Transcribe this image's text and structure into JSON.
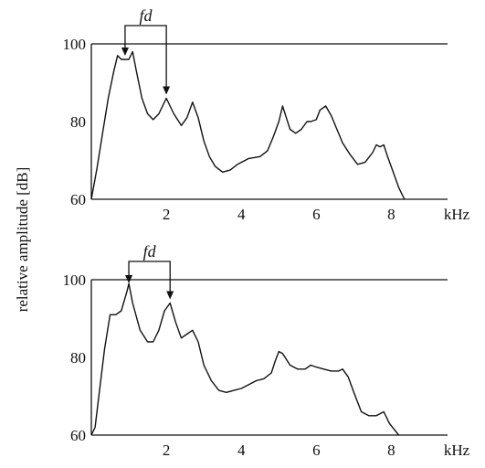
{
  "figure": {
    "ylabel": "relative amplitude [dB]"
  },
  "chart_data": [
    {
      "type": "line",
      "title": "",
      "xlabel": "",
      "ylabel": "relative amplitude [dB]",
      "x_unit": "kHz",
      "xlim": [
        0,
        9.5
      ],
      "ylim": [
        60,
        100
      ],
      "x_ticks": [
        "2",
        "4",
        "6",
        "8"
      ],
      "y_ticks": [
        "60",
        "80",
        "100"
      ],
      "grid": false,
      "annotation": {
        "label": "fd",
        "from_x": 0.9,
        "to_x": 2.0
      },
      "series": [
        {
          "x": [
            0.0,
            0.15,
            0.3,
            0.45,
            0.6,
            0.7,
            0.8,
            0.9,
            1.0,
            1.1,
            1.2,
            1.35,
            1.5,
            1.65,
            1.8,
            2.0,
            2.2,
            2.4,
            2.55,
            2.7,
            2.85,
            3.0,
            3.15,
            3.3,
            3.5,
            3.7,
            3.9,
            4.2,
            4.5,
            4.7,
            4.85,
            5.0,
            5.1,
            5.2,
            5.3,
            5.45,
            5.6,
            5.75,
            5.85,
            6.0,
            6.1,
            6.25,
            6.4,
            6.55,
            6.7,
            6.9,
            7.1,
            7.3,
            7.5,
            7.6,
            7.7,
            7.8,
            7.9,
            8.05,
            8.2,
            8.35
          ],
          "y": [
            60.0,
            68.0,
            77.0,
            86.0,
            93.0,
            97.0,
            96.0,
            96.0,
            96.0,
            98.0,
            93.0,
            86.0,
            82.0,
            80.5,
            82.0,
            86.0,
            82.0,
            79.0,
            81.0,
            85.0,
            81.0,
            75.0,
            71.0,
            68.5,
            67.0,
            67.5,
            69.0,
            70.5,
            71.0,
            72.5,
            76.0,
            80.0,
            84.0,
            81.0,
            78.0,
            77.0,
            78.0,
            80.0,
            80.0,
            80.5,
            83.0,
            84.0,
            81.5,
            78.0,
            74.5,
            71.5,
            69.0,
            69.5,
            72.0,
            74.0,
            73.5,
            74.0,
            71.0,
            67.0,
            63.0,
            60.0
          ]
        }
      ]
    },
    {
      "type": "line",
      "title": "",
      "xlabel": "",
      "ylabel": "relative amplitude [dB]",
      "x_unit": "kHz",
      "xlim": [
        0,
        9.5
      ],
      "ylim": [
        60,
        100
      ],
      "x_ticks": [
        "2",
        "4",
        "6",
        "8"
      ],
      "y_ticks": [
        "60",
        "80",
        "100"
      ],
      "grid": false,
      "annotation": {
        "label": "fd",
        "from_x": 1.0,
        "to_x": 2.1
      },
      "series": [
        {
          "x": [
            0.0,
            0.1,
            0.2,
            0.35,
            0.5,
            0.65,
            0.8,
            0.95,
            1.0,
            1.1,
            1.3,
            1.5,
            1.65,
            1.8,
            1.95,
            2.1,
            2.25,
            2.4,
            2.55,
            2.7,
            2.85,
            3.0,
            3.2,
            3.4,
            3.6,
            3.8,
            4.0,
            4.2,
            4.4,
            4.6,
            4.8,
            4.9,
            5.0,
            5.1,
            5.3,
            5.5,
            5.7,
            5.85,
            6.0,
            6.2,
            6.4,
            6.6,
            6.7,
            6.85,
            7.0,
            7.2,
            7.4,
            7.6,
            7.8,
            7.95,
            8.2
          ],
          "y": [
            60.0,
            62.0,
            70.0,
            82.0,
            91.0,
            91.0,
            92.0,
            97.0,
            99.0,
            94.0,
            87.0,
            84.0,
            84.0,
            87.0,
            92.0,
            94.0,
            89.0,
            85.0,
            86.0,
            87.0,
            84.0,
            78.0,
            74.0,
            71.5,
            71.0,
            71.5,
            72.0,
            73.0,
            74.0,
            74.5,
            76.0,
            79.0,
            81.5,
            81.0,
            78.0,
            77.0,
            77.0,
            78.0,
            77.5,
            77.0,
            76.5,
            76.5,
            77.0,
            75.0,
            71.0,
            66.0,
            65.0,
            65.0,
            66.0,
            63.0,
            60.0
          ]
        }
      ]
    }
  ]
}
